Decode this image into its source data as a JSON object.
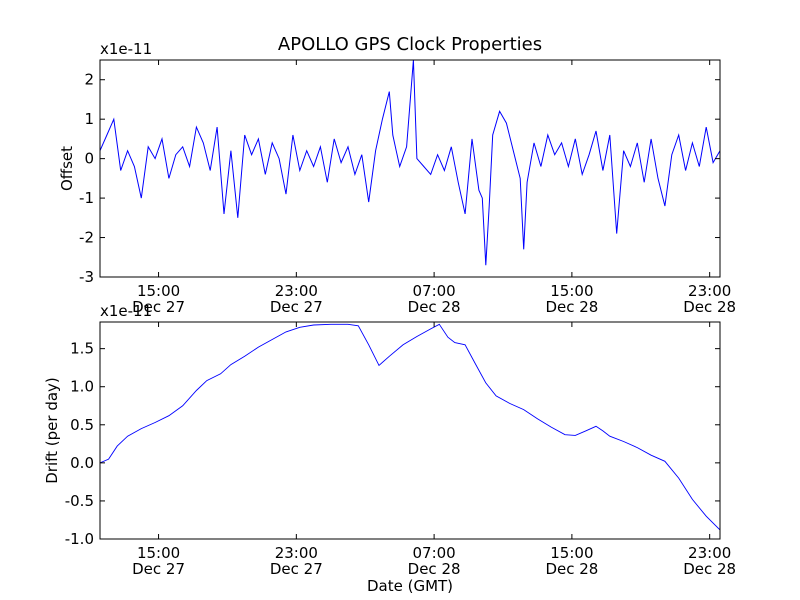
{
  "title": "APOLLO GPS Clock Properties",
  "chart_data": [
    {
      "type": "line",
      "ylabel": "Offset",
      "xlabel": "",
      "exponent_label": "x1e-11",
      "x_unit": "hours since Dec 27 00:00 GMT",
      "xlim": [
        11.6,
        47.6
      ],
      "ylim": [
        -3,
        2.5
      ],
      "yticks": [
        -3,
        -2,
        -1,
        0,
        1,
        2
      ],
      "ytick_labels": [
        "-3",
        "-2",
        "-1",
        "0",
        "1",
        "2"
      ],
      "xticks": [
        {
          "x": 15,
          "time": "15:00",
          "date": "Dec 27"
        },
        {
          "x": 23,
          "time": "23:00",
          "date": "Dec 27"
        },
        {
          "x": 31,
          "time": "07:00",
          "date": "Dec 28"
        },
        {
          "x": 39,
          "time": "15:00",
          "date": "Dec 28"
        },
        {
          "x": 47,
          "time": "23:00",
          "date": "Dec 28"
        }
      ],
      "color": "#0000ff",
      "series": [
        {
          "points": [
            [
              11.6,
              0.2
            ],
            [
              12.0,
              0.6
            ],
            [
              12.4,
              1.0
            ],
            [
              12.8,
              -0.3
            ],
            [
              13.2,
              0.2
            ],
            [
              13.6,
              -0.2
            ],
            [
              14.0,
              -1.0
            ],
            [
              14.4,
              0.3
            ],
            [
              14.8,
              0.0
            ],
            [
              15.2,
              0.5
            ],
            [
              15.6,
              -0.5
            ],
            [
              16.0,
              0.1
            ],
            [
              16.4,
              0.3
            ],
            [
              16.8,
              -0.2
            ],
            [
              17.2,
              0.8
            ],
            [
              17.6,
              0.4
            ],
            [
              18.0,
              -0.3
            ],
            [
              18.4,
              0.8
            ],
            [
              18.8,
              -1.4
            ],
            [
              19.2,
              0.2
            ],
            [
              19.6,
              -1.5
            ],
            [
              20.0,
              0.6
            ],
            [
              20.4,
              0.1
            ],
            [
              20.8,
              0.5
            ],
            [
              21.2,
              -0.4
            ],
            [
              21.6,
              0.4
            ],
            [
              22.0,
              0.0
            ],
            [
              22.4,
              -0.9
            ],
            [
              22.8,
              0.6
            ],
            [
              23.2,
              -0.3
            ],
            [
              23.6,
              0.2
            ],
            [
              24.0,
              -0.2
            ],
            [
              24.4,
              0.3
            ],
            [
              24.8,
              -0.6
            ],
            [
              25.2,
              0.5
            ],
            [
              25.6,
              -0.1
            ],
            [
              26.0,
              0.3
            ],
            [
              26.4,
              -0.4
            ],
            [
              26.8,
              0.1
            ],
            [
              27.2,
              -1.1
            ],
            [
              27.6,
              0.2
            ],
            [
              28.0,
              1.0
            ],
            [
              28.4,
              1.7
            ],
            [
              28.6,
              0.6
            ],
            [
              28.8,
              0.2
            ],
            [
              29.0,
              -0.2
            ],
            [
              29.4,
              0.3
            ],
            [
              29.8,
              2.5
            ],
            [
              30.0,
              0.0
            ],
            [
              30.4,
              -0.2
            ],
            [
              30.8,
              -0.4
            ],
            [
              31.2,
              0.1
            ],
            [
              31.6,
              -0.3
            ],
            [
              32.0,
              0.3
            ],
            [
              32.4,
              -0.6
            ],
            [
              32.8,
              -1.4
            ],
            [
              33.2,
              0.5
            ],
            [
              33.6,
              -0.8
            ],
            [
              33.8,
              -1.0
            ],
            [
              34.0,
              -2.7
            ],
            [
              34.2,
              -1.2
            ],
            [
              34.4,
              0.6
            ],
            [
              34.8,
              1.2
            ],
            [
              35.2,
              0.9
            ],
            [
              35.6,
              0.2
            ],
            [
              36.0,
              -0.5
            ],
            [
              36.2,
              -2.3
            ],
            [
              36.4,
              -0.6
            ],
            [
              36.8,
              0.4
            ],
            [
              37.2,
              -0.2
            ],
            [
              37.6,
              0.6
            ],
            [
              38.0,
              0.1
            ],
            [
              38.4,
              0.4
            ],
            [
              38.8,
              -0.2
            ],
            [
              39.2,
              0.5
            ],
            [
              39.6,
              -0.4
            ],
            [
              40.0,
              0.1
            ],
            [
              40.4,
              0.7
            ],
            [
              40.8,
              -0.3
            ],
            [
              41.2,
              0.6
            ],
            [
              41.6,
              -1.9
            ],
            [
              42.0,
              0.2
            ],
            [
              42.4,
              -0.2
            ],
            [
              42.8,
              0.4
            ],
            [
              43.2,
              -0.6
            ],
            [
              43.6,
              0.5
            ],
            [
              44.0,
              -0.5
            ],
            [
              44.4,
              -1.2
            ],
            [
              44.8,
              0.1
            ],
            [
              45.2,
              0.6
            ],
            [
              45.6,
              -0.3
            ],
            [
              46.0,
              0.4
            ],
            [
              46.4,
              -0.2
            ],
            [
              46.8,
              0.8
            ],
            [
              47.2,
              -0.1
            ],
            [
              47.6,
              0.2
            ]
          ]
        }
      ]
    },
    {
      "type": "line",
      "ylabel": "Drift (per day)",
      "xlabel": "Date (GMT)",
      "exponent_label": "x1e-11",
      "x_unit": "hours since Dec 27 00:00 GMT",
      "xlim": [
        11.6,
        47.6
      ],
      "ylim": [
        -1.0,
        1.85
      ],
      "yticks": [
        -1.0,
        -0.5,
        0.0,
        0.5,
        1.0,
        1.5
      ],
      "ytick_labels": [
        "-1.0",
        "-0.5",
        "0.0",
        "0.5",
        "1.0",
        "1.5"
      ],
      "xticks": [
        {
          "x": 15,
          "time": "15:00",
          "date": "Dec 27"
        },
        {
          "x": 23,
          "time": "23:00",
          "date": "Dec 27"
        },
        {
          "x": 31,
          "time": "07:00",
          "date": "Dec 28"
        },
        {
          "x": 39,
          "time": "15:00",
          "date": "Dec 28"
        },
        {
          "x": 47,
          "time": "23:00",
          "date": "Dec 28"
        }
      ],
      "color": "#0000ff",
      "series": [
        {
          "points": [
            [
              11.6,
              0.0
            ],
            [
              12.1,
              0.05
            ],
            [
              12.6,
              0.22
            ],
            [
              13.2,
              0.35
            ],
            [
              14.0,
              0.45
            ],
            [
              14.8,
              0.53
            ],
            [
              15.6,
              0.62
            ],
            [
              16.4,
              0.75
            ],
            [
              17.2,
              0.95
            ],
            [
              17.8,
              1.08
            ],
            [
              18.6,
              1.17
            ],
            [
              19.2,
              1.29
            ],
            [
              20.0,
              1.4
            ],
            [
              20.8,
              1.52
            ],
            [
              21.6,
              1.62
            ],
            [
              22.4,
              1.72
            ],
            [
              23.2,
              1.78
            ],
            [
              24.0,
              1.81
            ],
            [
              25.0,
              1.82
            ],
            [
              26.0,
              1.82
            ],
            [
              26.6,
              1.8
            ],
            [
              27.2,
              1.55
            ],
            [
              27.8,
              1.28
            ],
            [
              28.4,
              1.4
            ],
            [
              29.2,
              1.55
            ],
            [
              30.0,
              1.66
            ],
            [
              30.8,
              1.76
            ],
            [
              31.3,
              1.82
            ],
            [
              31.8,
              1.65
            ],
            [
              32.2,
              1.58
            ],
            [
              32.8,
              1.55
            ],
            [
              33.4,
              1.3
            ],
            [
              34.0,
              1.05
            ],
            [
              34.6,
              0.88
            ],
            [
              35.4,
              0.78
            ],
            [
              36.2,
              0.7
            ],
            [
              37.0,
              0.58
            ],
            [
              37.8,
              0.47
            ],
            [
              38.6,
              0.37
            ],
            [
              39.2,
              0.36
            ],
            [
              39.8,
              0.42
            ],
            [
              40.4,
              0.48
            ],
            [
              40.8,
              0.42
            ],
            [
              41.2,
              0.35
            ],
            [
              42.0,
              0.28
            ],
            [
              42.8,
              0.2
            ],
            [
              43.6,
              0.1
            ],
            [
              44.4,
              0.02
            ],
            [
              45.2,
              -0.2
            ],
            [
              46.0,
              -0.48
            ],
            [
              46.8,
              -0.7
            ],
            [
              47.6,
              -0.88
            ]
          ]
        }
      ]
    }
  ]
}
